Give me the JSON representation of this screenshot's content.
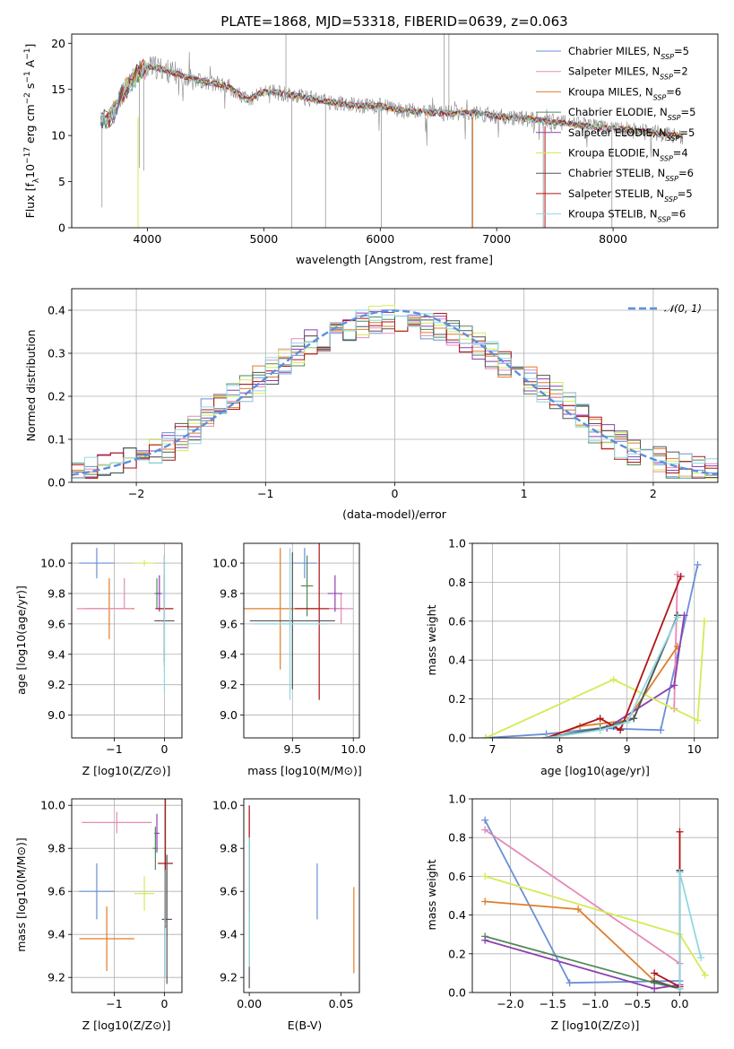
{
  "title": "PLATE=1868, MJD=53318, FIBERID=0639, z=0.063",
  "colors": {
    "chabrier_miles": "#6b8fd8",
    "salpeter_miles": "#e48bb8",
    "kroupa_miles": "#e07c2a",
    "chabrier_elodie": "#4f8a5a",
    "salpeter_elodie": "#8e3fb0",
    "kroupa_elodie": "#d5ea55",
    "chabrier_stelib": "#555555",
    "salpeter_stelib": "#b01515",
    "kroupa_stelib": "#8fd8e2",
    "data": "#8a8a8a",
    "normal_curve": "#5b8fdf",
    "grid": "#b0b0b0"
  },
  "chart_data": [
    {
      "type": "line",
      "id": "spectrum",
      "xlabel": "wavelength [Angstrom, rest frame]",
      "ylabel": "Flux [f_λ10^-17 erg cm^-2 s^-1 A^-1]",
      "xlim": [
        3350,
        8900
      ],
      "ylim": [
        0,
        21
      ],
      "xticks": [
        "4000",
        "5000",
        "6000",
        "7000",
        "8000"
      ],
      "yticks": [
        "0",
        "5",
        "10",
        "15",
        "20"
      ],
      "grid": false,
      "legend_position": "top-right",
      "legend": [
        {
          "name": "Chabrier MILES",
          "nssp": "5"
        },
        {
          "name": "Salpeter MILES",
          "nssp": "2"
        },
        {
          "name": "Kroupa MILES",
          "nssp": "6"
        },
        {
          "name": "Chabrier ELODIE",
          "nssp": "5"
        },
        {
          "name": "Salpeter ELODIE",
          "nssp": "5"
        },
        {
          "name": "Kroupa ELODIE",
          "nssp": "4"
        },
        {
          "name": "Chabrier STELIB",
          "nssp": "6"
        },
        {
          "name": "Salpeter STELIB",
          "nssp": "5"
        },
        {
          "name": "Kroupa STELIB",
          "nssp": "6"
        }
      ],
      "continuum": {
        "x": [
          3600,
          3700,
          3800,
          3900,
          4000,
          4100,
          4300,
          4500,
          4700,
          4860,
          5000,
          5200,
          5400,
          5600,
          5800,
          6000,
          6200,
          6400,
          6600,
          6800,
          7000,
          7200,
          7400,
          7600,
          7800,
          8000,
          8200,
          8400,
          8600
        ],
        "y": [
          11.5,
          12.3,
          14.8,
          16.5,
          17.5,
          17.3,
          16.5,
          15.8,
          15.3,
          13.8,
          14.8,
          14.5,
          14.0,
          13.6,
          13.2,
          13.2,
          12.7,
          12.5,
          12.4,
          12.5,
          12.1,
          11.9,
          11.6,
          11.3,
          11.0,
          10.8,
          10.5,
          10.2,
          9.9
        ]
      }
    },
    {
      "type": "line",
      "id": "residuals",
      "xlabel": "(data-model)/error",
      "ylabel": "Normed distribution",
      "xlim": [
        -2.5,
        2.5
      ],
      "ylim": [
        0,
        0.45
      ],
      "xticks": [
        "−2",
        "−1",
        "0",
        "1",
        "2"
      ],
      "yticks": [
        "0.0",
        "0.1",
        "0.2",
        "0.3",
        "0.4"
      ],
      "grid": true,
      "legend": "𝒩(0, 1)",
      "legend_position": "top-right"
    },
    {
      "type": "scatter",
      "id": "age_vs_Z",
      "xlabel": "Z [log10(Z/Z⊙)]",
      "ylabel": "age [log10(age/yr)]",
      "xlim": [
        -1.85,
        0.35
      ],
      "ylim": [
        8.85,
        10.13
      ],
      "xticks": [
        "−1",
        "0"
      ],
      "yticks": [
        "9.0",
        "9.2",
        "9.4",
        "9.6",
        "9.8",
        "10.0"
      ],
      "grid": true,
      "points": [
        {
          "series": "chabrier_miles",
          "x": -1.35,
          "y": 10.0,
          "xerr": 0.35,
          "yerr": 0.1
        },
        {
          "series": "kroupa_miles",
          "x": -1.1,
          "y": 9.7,
          "xerr": 0.5,
          "yerr": 0.2
        },
        {
          "series": "salpeter_miles",
          "x": -1.2,
          "y": 9.7,
          "xerr": 0.55,
          "yerr": 0.0
        },
        {
          "series": "salpeter_miles",
          "x": -0.8,
          "y": 9.8,
          "xerr": 0.0,
          "yerr": 0.1
        },
        {
          "series": "kroupa_elodie",
          "x": -0.4,
          "y": 10.0,
          "xerr": 0.2,
          "yerr": 0.02
        },
        {
          "series": "chabrier_elodie",
          "x": -0.15,
          "y": 9.8,
          "xerr": 0.05,
          "yerr": 0.1
        },
        {
          "series": "salpeter_elodie",
          "x": -0.1,
          "y": 9.8,
          "xerr": 0.05,
          "yerr": 0.12
        },
        {
          "series": "salpeter_stelib",
          "x": 0.0,
          "y": 9.7,
          "xerr": 0.18,
          "yerr": 0.35
        },
        {
          "series": "chabrier_stelib",
          "x": 0.0,
          "y": 9.62,
          "xerr": 0.2,
          "yerr": 0.3
        },
        {
          "series": "kroupa_stelib",
          "x": 0.0,
          "y": 9.6,
          "xerr": 0.02,
          "yerr": 0.45
        }
      ]
    },
    {
      "type": "scatter",
      "id": "age_vs_mass",
      "xlabel": "mass [log10(M/M⊙)]",
      "ylabel": "",
      "xlim": [
        9.1,
        10.05
      ],
      "ylim": [
        8.85,
        10.13
      ],
      "xticks": [
        "9.5",
        "10.0"
      ],
      "yticks": [
        "9.0",
        "9.2",
        "9.4",
        "9.6",
        "9.8",
        "10.0"
      ],
      "grid": true,
      "points": [
        {
          "series": "kroupa_miles",
          "x": 9.4,
          "y": 9.7,
          "xerr": 0.3,
          "yerr": 0.4
        },
        {
          "series": "chabrier_miles",
          "x": 9.6,
          "y": 10.0,
          "xerr": 0.1,
          "yerr": 0.1
        },
        {
          "series": "chabrier_elodie",
          "x": 9.62,
          "y": 9.85,
          "xerr": 0.05,
          "yerr": 0.2
        },
        {
          "series": "salpeter_stelib",
          "x": 9.72,
          "y": 9.7,
          "xerr": 0.2,
          "yerr": 0.6
        },
        {
          "series": "salpeter_miles",
          "x": 9.9,
          "y": 9.7,
          "xerr": 0.1,
          "yerr": 0.1
        },
        {
          "series": "salpeter_elodie",
          "x": 9.85,
          "y": 9.8,
          "xerr": 0.06,
          "yerr": 0.12
        },
        {
          "series": "chabrier_stelib",
          "x": 9.5,
          "y": 9.62,
          "xerr": 0.35,
          "yerr": 0.45
        },
        {
          "series": "kroupa_stelib",
          "x": 9.48,
          "y": 9.6,
          "xerr": 0.3,
          "yerr": 0.5
        }
      ]
    },
    {
      "type": "line",
      "id": "mass_weight_vs_age",
      "xlabel": "age [log10(age/yr)]",
      "ylabel": "mass weight",
      "xlim": [
        6.7,
        10.35
      ],
      "ylim": [
        0,
        1.0
      ],
      "xticks": [
        "7",
        "8",
        "9",
        "10"
      ],
      "yticks": [
        "0.0",
        "0.2",
        "0.4",
        "0.6",
        "0.8",
        "1.0"
      ],
      "grid": true,
      "series": [
        {
          "color": "chabrier_miles",
          "x": [
            6.9,
            7.8,
            8.6,
            9.5,
            10.05
          ],
          "y": [
            0.0,
            0.02,
            0.05,
            0.04,
            0.89
          ]
        },
        {
          "color": "salpeter_miles",
          "x": [
            9.7,
            9.75
          ],
          "y": [
            0.15,
            0.84
          ]
        },
        {
          "color": "kroupa_miles",
          "x": [
            7.8,
            8.3,
            9.0,
            9.75
          ],
          "y": [
            0.0,
            0.06,
            0.09,
            0.47
          ]
        },
        {
          "color": "chabrier_elodie",
          "x": [
            7.8,
            8.6,
            9.1,
            9.75
          ],
          "y": [
            0.0,
            0.05,
            0.1,
            0.63
          ]
        },
        {
          "color": "salpeter_elodie",
          "x": [
            7.8,
            8.7,
            9.7,
            9.85
          ],
          "y": [
            0.0,
            0.05,
            0.27,
            0.63
          ]
        },
        {
          "color": "kroupa_elodie",
          "x": [
            6.9,
            8.8,
            10.05,
            10.15
          ],
          "y": [
            0.0,
            0.3,
            0.09,
            0.6
          ]
        },
        {
          "color": "chabrier_stelib",
          "x": [
            7.8,
            8.8,
            9.1,
            9.75
          ],
          "y": [
            0.0,
            0.06,
            0.1,
            0.63
          ]
        },
        {
          "color": "salpeter_stelib",
          "x": [
            7.8,
            8.6,
            8.9,
            9.8
          ],
          "y": [
            0.0,
            0.1,
            0.04,
            0.83
          ]
        },
        {
          "color": "kroupa_stelib",
          "x": [
            7.8,
            8.6,
            9.0,
            9.75
          ],
          "y": [
            0.0,
            0.04,
            0.08,
            0.62
          ]
        }
      ]
    },
    {
      "type": "scatter",
      "id": "mass_vs_Z",
      "xlabel": "Z [log10(Z/Z⊙)]",
      "ylabel": "mass [log10(M/M⊙)]",
      "xlim": [
        -1.85,
        0.35
      ],
      "ylim": [
        9.13,
        10.03
      ],
      "xticks": [
        "−1",
        "0"
      ],
      "yticks": [
        "9.2",
        "9.4",
        "9.6",
        "9.8",
        "10.0"
      ],
      "grid": true,
      "points": [
        {
          "series": "salpeter_miles",
          "x": -0.95,
          "y": 9.92,
          "xerr": 0.7,
          "yerr": 0.05
        },
        {
          "series": "salpeter_elodie",
          "x": -0.15,
          "y": 9.87,
          "xerr": 0.05,
          "yerr": 0.09
        },
        {
          "series": "chabrier_elodie",
          "x": -0.18,
          "y": 9.8,
          "xerr": 0.05,
          "yerr": 0.1
        },
        {
          "series": "salpeter_stelib",
          "x": 0.02,
          "y": 9.73,
          "xerr": 0.15,
          "yerr": 0.3
        },
        {
          "series": "chabrier_miles",
          "x": -1.35,
          "y": 9.6,
          "xerr": 0.35,
          "yerr": 0.13
        },
        {
          "series": "kroupa_elodie",
          "x": -0.4,
          "y": 9.59,
          "xerr": 0.2,
          "yerr": 0.08
        },
        {
          "series": "kroupa_miles",
          "x": -1.15,
          "y": 9.38,
          "xerr": 0.55,
          "yerr": 0.15
        },
        {
          "series": "chabrier_stelib",
          "x": 0.05,
          "y": 9.47,
          "xerr": 0.1,
          "yerr": 0.3
        },
        {
          "series": "kroupa_stelib",
          "x": 0.01,
          "y": 9.45,
          "xerr": 0.02,
          "yerr": 0.25
        }
      ]
    },
    {
      "type": "scatter",
      "id": "mass_vs_ebv",
      "xlabel": "E(B-V)",
      "ylabel": "",
      "xlim": [
        -0.003,
        0.06
      ],
      "ylim": [
        9.13,
        10.03
      ],
      "xticks": [
        "0.00",
        "0.05"
      ],
      "yticks": [
        "9.2",
        "9.4",
        "9.6",
        "9.8",
        "10.0"
      ],
      "grid": false,
      "points": [
        {
          "series": "salpeter_miles",
          "x": 0.0,
          "y": 9.92,
          "yerr": 0.06
        },
        {
          "series": "salpeter_stelib",
          "x": 0.0,
          "y": 9.75,
          "yerr": 0.25
        },
        {
          "series": "chabrier_stelib",
          "x": 0.0,
          "y": 9.5,
          "yerr": 0.35
        },
        {
          "series": "kroupa_stelib",
          "x": 0.0,
          "y": 9.55,
          "yerr": 0.3
        },
        {
          "series": "chabrier_miles",
          "x": 0.037,
          "y": 9.6,
          "yerr": 0.13
        },
        {
          "series": "kroupa_miles",
          "x": 0.057,
          "y": 9.42,
          "yerr": 0.2
        }
      ]
    },
    {
      "type": "line",
      "id": "mass_weight_vs_Z",
      "xlabel": "Z [log10(Z/Z⊙)]",
      "ylabel": "mass weight",
      "xlim": [
        -2.45,
        0.45
      ],
      "ylim": [
        0,
        1.0
      ],
      "xticks": [
        "−2.0",
        "−1.5",
        "−1.0",
        "−0.5",
        "0.0"
      ],
      "yticks": [
        "0.0",
        "0.2",
        "0.4",
        "0.6",
        "0.8",
        "1.0"
      ],
      "grid": true,
      "series": [
        {
          "color": "chabrier_miles",
          "x": [
            -2.3,
            -1.3,
            0.0
          ],
          "y": [
            0.89,
            0.05,
            0.06
          ]
        },
        {
          "color": "salpeter_miles",
          "x": [
            -2.3,
            0.0
          ],
          "y": [
            0.84,
            0.15
          ]
        },
        {
          "color": "kroupa_miles",
          "x": [
            -2.3,
            -1.2,
            -0.3,
            0.0
          ],
          "y": [
            0.47,
            0.43,
            0.06,
            0.02
          ]
        },
        {
          "color": "chabrier_elodie",
          "x": [
            -2.3,
            -0.3,
            0.0,
            0.0
          ],
          "y": [
            0.29,
            0.05,
            0.02,
            0.63
          ]
        },
        {
          "color": "salpeter_elodie",
          "x": [
            -2.3,
            -0.3,
            0.0,
            0.0
          ],
          "y": [
            0.27,
            0.02,
            0.04,
            0.63
          ]
        },
        {
          "color": "kroupa_elodie",
          "x": [
            -2.3,
            0.0,
            0.3
          ],
          "y": [
            0.6,
            0.3,
            0.09
          ]
        },
        {
          "color": "chabrier_stelib",
          "x": [
            -0.3,
            0.0,
            0.0
          ],
          "y": [
            0.06,
            0.02,
            0.63
          ]
        },
        {
          "color": "salpeter_stelib",
          "x": [
            -0.3,
            0.0,
            0.0
          ],
          "y": [
            0.1,
            0.03,
            0.83
          ]
        },
        {
          "color": "kroupa_stelib",
          "x": [
            0.0,
            0.0,
            0.25
          ],
          "y": [
            0.02,
            0.62,
            0.18
          ]
        }
      ]
    }
  ]
}
